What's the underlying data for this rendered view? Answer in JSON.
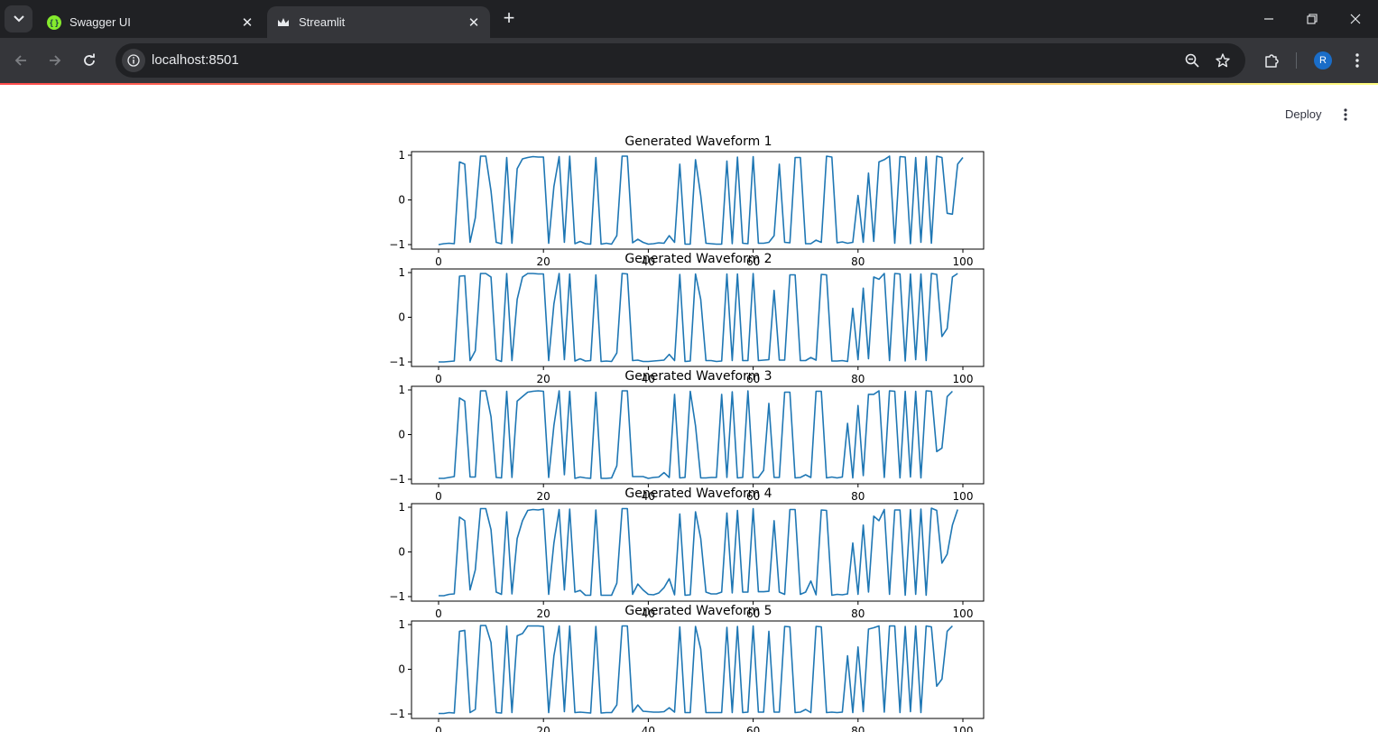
{
  "browser": {
    "tabs": [
      {
        "title": "Swagger UI",
        "icon": "swagger-icon",
        "active": false,
        "color": "#85ea2d"
      },
      {
        "title": "Streamlit",
        "icon": "streamlit-crown-icon",
        "active": true
      }
    ],
    "address": "localhost:8501",
    "profile_initial": "R"
  },
  "app": {
    "deploy_label": "Deploy",
    "header_decoration_colors": [
      "#ff4b4b",
      "#fffd80"
    ]
  },
  "chart_data": {
    "type": "line",
    "line_color": "#1f77b4",
    "xlim": [
      0,
      99
    ],
    "ylim": [
      -1,
      1
    ],
    "xticks": [
      "0",
      "20",
      "40",
      "60",
      "80",
      "100"
    ],
    "yticks": [
      "−1",
      "0",
      "1"
    ],
    "grid": false,
    "subplots": [
      {
        "title": "Generated Waveform 1",
        "y": [
          -1,
          -0.98,
          -0.97,
          -0.98,
          0.85,
          0.8,
          -0.95,
          -0.4,
          0.98,
          0.98,
          0.2,
          -0.95,
          -0.98,
          0.95,
          -0.97,
          0.7,
          0.92,
          0.95,
          0.97,
          0.96,
          0.96,
          -0.97,
          0.3,
          0.97,
          -0.95,
          0.98,
          -0.98,
          -0.93,
          -0.98,
          -0.99,
          0.95,
          -0.99,
          -0.97,
          -0.99,
          -0.8,
          0.98,
          0.98,
          -0.96,
          -0.88,
          -0.95,
          -0.99,
          -0.98,
          -0.96,
          -0.97,
          -0.8,
          -0.95,
          0.8,
          -0.99,
          -0.99,
          0.9,
          0.1,
          -0.97,
          -0.98,
          -0.99,
          -0.99,
          0.87,
          -0.98,
          0.96,
          -0.97,
          -0.98,
          0.97,
          -0.97,
          -0.97,
          -0.95,
          -0.8,
          0.8,
          -0.95,
          -0.96,
          0.95,
          0.95,
          -0.98,
          -0.98,
          -0.9,
          -0.95,
          0.98,
          0.96,
          -0.96,
          -0.94,
          -0.97,
          -0.95,
          0.1,
          -0.95,
          0.6,
          -0.93,
          0.85,
          0.9,
          0.98,
          -0.97,
          0.97,
          0.96,
          -0.98,
          0.95,
          -0.95,
          0.97,
          -0.97,
          0.98,
          0.95,
          -0.3,
          -0.32,
          0.8,
          0.95
        ]
      },
      {
        "title": "Generated Waveform 2",
        "y": [
          -1,
          -1,
          -0.99,
          -0.98,
          0.92,
          0.93,
          -0.97,
          -0.75,
          0.98,
          0.98,
          0.9,
          -0.95,
          -0.99,
          0.98,
          -0.97,
          0.4,
          0.9,
          0.98,
          0.98,
          0.97,
          0.97,
          -0.97,
          0.3,
          0.98,
          -0.95,
          0.97,
          -0.98,
          -0.93,
          -0.98,
          -0.97,
          0.95,
          -0.99,
          -0.98,
          -0.99,
          -0.8,
          0.98,
          0.97,
          -0.97,
          -0.96,
          -0.99,
          -0.99,
          -0.98,
          -0.97,
          -0.96,
          -0.83,
          -0.97,
          0.96,
          -0.99,
          -0.98,
          0.97,
          0.4,
          -0.97,
          -0.97,
          -0.99,
          -0.98,
          0.97,
          -0.97,
          0.97,
          -0.97,
          -0.97,
          0.98,
          -0.97,
          -0.96,
          -0.95,
          0.6,
          -0.96,
          -0.96,
          0.95,
          0.95,
          -0.97,
          -0.97,
          -0.9,
          -0.96,
          0.96,
          0.95,
          -0.98,
          -0.98,
          -0.97,
          -0.99,
          0.2,
          -0.95,
          0.65,
          -0.93,
          0.9,
          0.85,
          0.98,
          -0.97,
          0.98,
          0.97,
          -0.98,
          0.97,
          -0.95,
          0.97,
          -0.97,
          0.98,
          0.96,
          -0.43,
          -0.25,
          0.9,
          0.98
        ]
      },
      {
        "title": "Generated Waveform 3",
        "y": [
          -0.98,
          -0.98,
          -0.96,
          -0.94,
          0.82,
          0.75,
          -0.95,
          -0.95,
          0.98,
          0.98,
          0.4,
          -0.96,
          -0.97,
          0.97,
          -0.96,
          0.75,
          0.85,
          0.95,
          0.97,
          0.98,
          0.97,
          -0.96,
          0.2,
          0.98,
          -0.9,
          0.97,
          -0.98,
          -0.95,
          -0.97,
          -0.98,
          0.95,
          -0.98,
          -0.98,
          -0.97,
          -0.7,
          0.98,
          0.98,
          -0.94,
          -0.94,
          -0.94,
          -0.98,
          -0.96,
          -0.95,
          -0.85,
          -0.96,
          0.9,
          -0.97,
          -0.96,
          0.97,
          0.2,
          -0.97,
          -0.97,
          -0.96,
          -0.96,
          0.9,
          -0.96,
          0.96,
          -0.97,
          -0.96,
          0.98,
          -0.96,
          -0.96,
          -0.8,
          0.7,
          -0.96,
          -0.96,
          0.95,
          0.95,
          -0.97,
          -0.96,
          -0.9,
          -0.96,
          0.97,
          0.97,
          -0.97,
          -0.95,
          -0.97,
          -0.95,
          0.25,
          -0.97,
          0.65,
          -0.92,
          0.9,
          0.9,
          0.98,
          -0.96,
          0.98,
          0.97,
          -0.97,
          0.97,
          -0.95,
          0.97,
          -0.97,
          0.98,
          0.97,
          -0.38,
          -0.3,
          0.85,
          0.97
        ]
      },
      {
        "title": "Generated Waveform 4",
        "y": [
          -0.98,
          -0.98,
          -0.95,
          -0.94,
          0.78,
          0.7,
          -0.85,
          -0.4,
          0.97,
          0.97,
          0.5,
          -0.9,
          -0.95,
          0.9,
          -0.94,
          0.3,
          0.7,
          0.93,
          0.95,
          0.94,
          0.96,
          -0.95,
          0.2,
          0.95,
          -0.85,
          0.96,
          -0.9,
          -0.86,
          -0.97,
          -0.97,
          0.94,
          -0.97,
          -0.97,
          -0.97,
          -0.7,
          0.97,
          0.97,
          -0.95,
          -0.72,
          -0.85,
          -0.95,
          -0.96,
          -0.92,
          -0.8,
          -0.6,
          -0.96,
          0.85,
          -0.97,
          -0.96,
          0.9,
          0.3,
          -0.9,
          -0.94,
          -0.94,
          -0.9,
          0.87,
          -0.92,
          0.93,
          -0.9,
          -0.9,
          0.97,
          -0.89,
          -0.89,
          -0.88,
          0.7,
          -0.9,
          -0.95,
          0.95,
          0.95,
          -0.95,
          -0.9,
          -0.65,
          -0.96,
          0.94,
          0.93,
          -0.97,
          -0.95,
          -0.96,
          -0.94,
          0.2,
          -0.95,
          0.6,
          -0.9,
          0.8,
          0.7,
          0.95,
          -0.95,
          0.94,
          0.94,
          -0.97,
          0.95,
          -0.95,
          0.96,
          -0.97,
          0.98,
          0.93,
          -0.25,
          -0.05,
          0.6,
          0.95
        ]
      },
      {
        "title": "Generated Waveform 5",
        "y": [
          -0.99,
          -0.99,
          -0.97,
          -0.98,
          0.85,
          0.87,
          -0.97,
          -0.9,
          0.98,
          0.98,
          0.6,
          -0.97,
          -0.98,
          0.97,
          -0.97,
          0.75,
          0.8,
          0.97,
          0.97,
          0.97,
          0.96,
          -0.97,
          0.3,
          0.97,
          -0.95,
          0.97,
          -0.97,
          -0.96,
          -0.97,
          -0.98,
          0.96,
          -0.98,
          -0.97,
          -0.97,
          -0.8,
          0.97,
          0.97,
          -0.96,
          -0.8,
          -0.94,
          -0.95,
          -0.96,
          -0.96,
          -0.95,
          -0.86,
          -0.96,
          0.95,
          -0.97,
          -0.97,
          0.96,
          0.45,
          -0.97,
          -0.97,
          -0.97,
          -0.97,
          0.94,
          -0.97,
          0.96,
          -0.97,
          -0.96,
          0.97,
          -0.96,
          -0.96,
          0.85,
          -0.96,
          -0.96,
          0.96,
          0.95,
          -0.97,
          -0.96,
          -0.9,
          -0.97,
          0.96,
          0.95,
          -0.97,
          -0.96,
          -0.97,
          -0.96,
          0.3,
          -0.97,
          0.5,
          -0.95,
          0.9,
          0.93,
          0.97,
          -0.96,
          0.97,
          0.97,
          -0.97,
          0.96,
          -0.95,
          0.97,
          -0.97,
          0.97,
          0.95,
          -0.38,
          -0.22,
          0.85,
          0.97
        ]
      }
    ]
  }
}
